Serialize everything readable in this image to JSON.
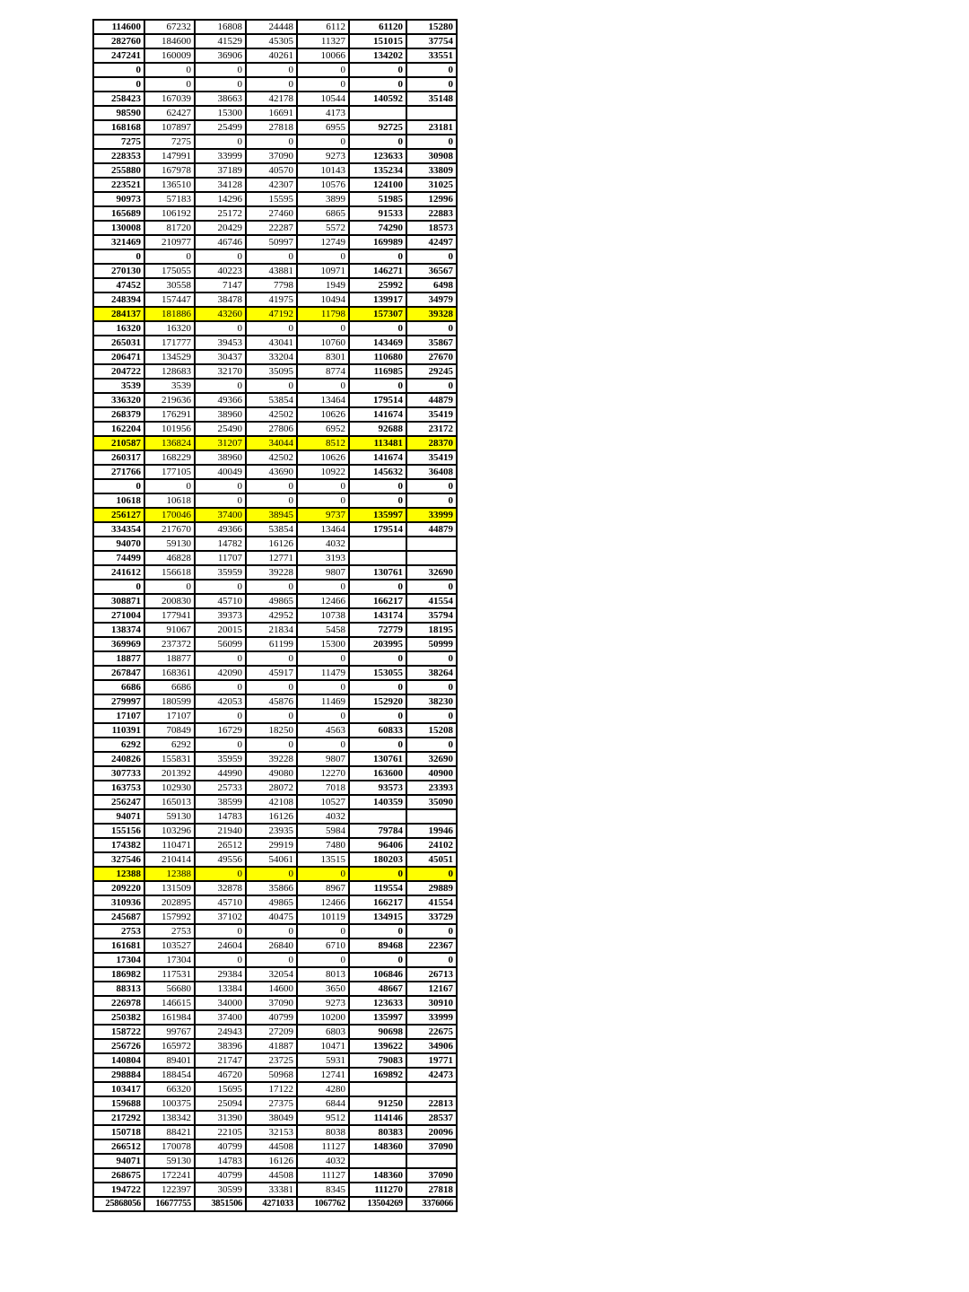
{
  "colors": {
    "highlight_yellow": "#ffff00",
    "border_black": "#000000",
    "text_black": "#000000",
    "background_white": "#ffffff"
  },
  "table": {
    "num_columns": 7,
    "rows": [
      {
        "highlight": false,
        "cells": [
          "114600",
          "67232",
          "16808",
          "24448",
          "6112",
          "61120",
          "15280"
        ]
      },
      {
        "highlight": false,
        "cells": [
          "282760",
          "184600",
          "41529",
          "45305",
          "11327",
          "151015",
          "37754"
        ]
      },
      {
        "highlight": false,
        "cells": [
          "247241",
          "160009",
          "36906",
          "40261",
          "10066",
          "134202",
          "33551"
        ]
      },
      {
        "highlight": false,
        "cells": [
          "0",
          "0",
          "0",
          "0",
          "0",
          "0",
          "0"
        ]
      },
      {
        "highlight": false,
        "cells": [
          "0",
          "0",
          "0",
          "0",
          "0",
          "0",
          "0"
        ]
      },
      {
        "highlight": false,
        "cells": [
          "258423",
          "167039",
          "38663",
          "42178",
          "10544",
          "140592",
          "35148"
        ]
      },
      {
        "highlight": false,
        "cells": [
          "98590",
          "62427",
          "15300",
          "16691",
          "4173",
          "",
          ""
        ]
      },
      {
        "highlight": false,
        "cells": [
          "168168",
          "107897",
          "25499",
          "27818",
          "6955",
          "92725",
          "23181"
        ]
      },
      {
        "highlight": false,
        "cells": [
          "7275",
          "7275",
          "0",
          "0",
          "0",
          "0",
          "0"
        ]
      },
      {
        "highlight": false,
        "cells": [
          "228353",
          "147991",
          "33999",
          "37090",
          "9273",
          "123633",
          "30908"
        ]
      },
      {
        "highlight": false,
        "cells": [
          "255880",
          "167978",
          "37189",
          "40570",
          "10143",
          "135234",
          "33809"
        ]
      },
      {
        "highlight": false,
        "cells": [
          "223521",
          "136510",
          "34128",
          "42307",
          "10576",
          "124100",
          "31025"
        ]
      },
      {
        "highlight": false,
        "cells": [
          "90973",
          "57183",
          "14296",
          "15595",
          "3899",
          "51985",
          "12996"
        ]
      },
      {
        "highlight": false,
        "cells": [
          "165689",
          "106192",
          "25172",
          "27460",
          "6865",
          "91533",
          "22883"
        ]
      },
      {
        "highlight": false,
        "cells": [
          "130008",
          "81720",
          "20429",
          "22287",
          "5572",
          "74290",
          "18573"
        ]
      },
      {
        "highlight": false,
        "cells": [
          "321469",
          "210977",
          "46746",
          "50997",
          "12749",
          "169989",
          "42497"
        ]
      },
      {
        "highlight": false,
        "cells": [
          "0",
          "0",
          "0",
          "0",
          "0",
          "0",
          "0"
        ]
      },
      {
        "highlight": false,
        "cells": [
          "270130",
          "175055",
          "40223",
          "43881",
          "10971",
          "146271",
          "36567"
        ]
      },
      {
        "highlight": false,
        "cells": [
          "47452",
          "30558",
          "7147",
          "7798",
          "1949",
          "25992",
          "6498"
        ]
      },
      {
        "highlight": false,
        "cells": [
          "248394",
          "157447",
          "38478",
          "41975",
          "10494",
          "139917",
          "34979"
        ]
      },
      {
        "highlight": true,
        "cells": [
          "284137",
          "181886",
          "43260",
          "47192",
          "11798",
          "157307",
          "39328"
        ]
      },
      {
        "highlight": false,
        "cells": [
          "16320",
          "16320",
          "0",
          "0",
          "0",
          "0",
          "0"
        ]
      },
      {
        "highlight": false,
        "cells": [
          "265031",
          "171777",
          "39453",
          "43041",
          "10760",
          "143469",
          "35867"
        ]
      },
      {
        "highlight": false,
        "cells": [
          "206471",
          "134529",
          "30437",
          "33204",
          "8301",
          "110680",
          "27670"
        ]
      },
      {
        "highlight": false,
        "cells": [
          "204722",
          "128683",
          "32170",
          "35095",
          "8774",
          "116985",
          "29245"
        ]
      },
      {
        "highlight": false,
        "cells": [
          "3539",
          "3539",
          "0",
          "0",
          "0",
          "0",
          "0"
        ]
      },
      {
        "highlight": false,
        "cells": [
          "336320",
          "219636",
          "49366",
          "53854",
          "13464",
          "179514",
          "44879"
        ]
      },
      {
        "highlight": false,
        "cells": [
          "268379",
          "176291",
          "38960",
          "42502",
          "10626",
          "141674",
          "35419"
        ]
      },
      {
        "highlight": false,
        "cells": [
          "162204",
          "101956",
          "25490",
          "27806",
          "6952",
          "92688",
          "23172"
        ]
      },
      {
        "highlight": true,
        "cells": [
          "210587",
          "136824",
          "31207",
          "34044",
          "8512",
          "113481",
          "28370"
        ]
      },
      {
        "highlight": false,
        "cells": [
          "260317",
          "168229",
          "38960",
          "42502",
          "10626",
          "141674",
          "35419"
        ]
      },
      {
        "highlight": false,
        "cells": [
          "271766",
          "177105",
          "40049",
          "43690",
          "10922",
          "145632",
          "36408"
        ]
      },
      {
        "highlight": false,
        "cells": [
          "0",
          "0",
          "0",
          "0",
          "0",
          "0",
          "0"
        ]
      },
      {
        "highlight": false,
        "cells": [
          "10618",
          "10618",
          "0",
          "0",
          "0",
          "0",
          "0"
        ]
      },
      {
        "highlight": true,
        "cells": [
          "256127",
          "170046",
          "37400",
          "38945",
          "9737",
          "135997",
          "33999"
        ]
      },
      {
        "highlight": false,
        "cells": [
          "334354",
          "217670",
          "49366",
          "53854",
          "13464",
          "179514",
          "44879"
        ]
      },
      {
        "highlight": false,
        "cells": [
          "94070",
          "59130",
          "14782",
          "16126",
          "4032",
          "",
          ""
        ]
      },
      {
        "highlight": false,
        "cells": [
          "74499",
          "46828",
          "11707",
          "12771",
          "3193",
          "",
          ""
        ]
      },
      {
        "highlight": false,
        "cells": [
          "241612",
          "156618",
          "35959",
          "39228",
          "9807",
          "130761",
          "32690"
        ]
      },
      {
        "highlight": false,
        "cells": [
          "0",
          "0",
          "0",
          "0",
          "0",
          "0",
          "0"
        ]
      },
      {
        "highlight": false,
        "cells": [
          "308871",
          "200830",
          "45710",
          "49865",
          "12466",
          "166217",
          "41554"
        ]
      },
      {
        "highlight": false,
        "cells": [
          "271004",
          "177941",
          "39373",
          "42952",
          "10738",
          "143174",
          "35794"
        ]
      },
      {
        "highlight": false,
        "cells": [
          "138374",
          "91067",
          "20015",
          "21834",
          "5458",
          "72779",
          "18195"
        ]
      },
      {
        "highlight": false,
        "cells": [
          "369969",
          "237372",
          "56099",
          "61199",
          "15300",
          "203995",
          "50999"
        ]
      },
      {
        "highlight": false,
        "cells": [
          "18877",
          "18877",
          "0",
          "0",
          "0",
          "0",
          "0"
        ]
      },
      {
        "highlight": false,
        "cells": [
          "267847",
          "168361",
          "42090",
          "45917",
          "11479",
          "153055",
          "38264"
        ]
      },
      {
        "highlight": false,
        "cells": [
          "6686",
          "6686",
          "0",
          "0",
          "0",
          "0",
          "0"
        ]
      },
      {
        "highlight": false,
        "cells": [
          "279997",
          "180599",
          "42053",
          "45876",
          "11469",
          "152920",
          "38230"
        ]
      },
      {
        "highlight": false,
        "cells": [
          "17107",
          "17107",
          "0",
          "0",
          "0",
          "0",
          "0"
        ]
      },
      {
        "highlight": false,
        "cells": [
          "110391",
          "70849",
          "16729",
          "18250",
          "4563",
          "60833",
          "15208"
        ]
      },
      {
        "highlight": false,
        "cells": [
          "6292",
          "6292",
          "0",
          "0",
          "0",
          "0",
          "0"
        ]
      },
      {
        "highlight": false,
        "cells": [
          "240826",
          "155831",
          "35959",
          "39228",
          "9807",
          "130761",
          "32690"
        ]
      },
      {
        "highlight": false,
        "cells": [
          "307733",
          "201392",
          "44990",
          "49080",
          "12270",
          "163600",
          "40900"
        ]
      },
      {
        "highlight": false,
        "cells": [
          "163753",
          "102930",
          "25733",
          "28072",
          "7018",
          "93573",
          "23393"
        ]
      },
      {
        "highlight": false,
        "cells": [
          "256247",
          "165013",
          "38599",
          "42108",
          "10527",
          "140359",
          "35090"
        ]
      },
      {
        "highlight": false,
        "cells": [
          "94071",
          "59130",
          "14783",
          "16126",
          "4032",
          "",
          ""
        ]
      },
      {
        "highlight": false,
        "cells": [
          "155156",
          "103296",
          "21940",
          "23935",
          "5984",
          "79784",
          "19946"
        ]
      },
      {
        "highlight": false,
        "cells": [
          "174382",
          "110471",
          "26512",
          "29919",
          "7480",
          "96406",
          "24102"
        ]
      },
      {
        "highlight": false,
        "cells": [
          "327546",
          "210414",
          "49556",
          "54061",
          "13515",
          "180203",
          "45051"
        ]
      },
      {
        "highlight": true,
        "cells": [
          "12388",
          "12388",
          "0",
          "0",
          "0",
          "0",
          "0"
        ]
      },
      {
        "highlight": false,
        "cells": [
          "209220",
          "131509",
          "32878",
          "35866",
          "8967",
          "119554",
          "29889"
        ]
      },
      {
        "highlight": false,
        "cells": [
          "310936",
          "202895",
          "45710",
          "49865",
          "12466",
          "166217",
          "41554"
        ]
      },
      {
        "highlight": false,
        "cells": [
          "245687",
          "157992",
          "37102",
          "40475",
          "10119",
          "134915",
          "33729"
        ]
      },
      {
        "highlight": false,
        "cells": [
          "2753",
          "2753",
          "0",
          "0",
          "0",
          "0",
          "0"
        ]
      },
      {
        "highlight": false,
        "cells": [
          "161681",
          "103527",
          "24604",
          "26840",
          "6710",
          "89468",
          "22367"
        ]
      },
      {
        "highlight": false,
        "cells": [
          "17304",
          "17304",
          "0",
          "0",
          "0",
          "0",
          "0"
        ]
      },
      {
        "highlight": false,
        "cells": [
          "186982",
          "117531",
          "29384",
          "32054",
          "8013",
          "106846",
          "26713"
        ]
      },
      {
        "highlight": false,
        "cells": [
          "88313",
          "56680",
          "13384",
          "14600",
          "3650",
          "48667",
          "12167"
        ]
      },
      {
        "highlight": false,
        "cells": [
          "226978",
          "146615",
          "34000",
          "37090",
          "9273",
          "123633",
          "30910"
        ]
      },
      {
        "highlight": false,
        "cells": [
          "250382",
          "161984",
          "37400",
          "40799",
          "10200",
          "135997",
          "33999"
        ]
      },
      {
        "highlight": false,
        "cells": [
          "158722",
          "99767",
          "24943",
          "27209",
          "6803",
          "90698",
          "22675"
        ]
      },
      {
        "highlight": false,
        "cells": [
          "256726",
          "165972",
          "38396",
          "41887",
          "10471",
          "139622",
          "34906"
        ]
      },
      {
        "highlight": false,
        "cells": [
          "140804",
          "89401",
          "21747",
          "23725",
          "5931",
          "79083",
          "19771"
        ]
      },
      {
        "highlight": false,
        "cells": [
          "298884",
          "188454",
          "46720",
          "50968",
          "12741",
          "169892",
          "42473"
        ]
      },
      {
        "highlight": false,
        "cells": [
          "103417",
          "66320",
          "15695",
          "17122",
          "4280",
          "",
          ""
        ]
      },
      {
        "highlight": false,
        "cells": [
          "159688",
          "100375",
          "25094",
          "27375",
          "6844",
          "91250",
          "22813"
        ]
      },
      {
        "highlight": false,
        "cells": [
          "217292",
          "138342",
          "31390",
          "38049",
          "9512",
          "114146",
          "28537"
        ]
      },
      {
        "highlight": false,
        "cells": [
          "150718",
          "88421",
          "22105",
          "32153",
          "8038",
          "80383",
          "20096"
        ]
      },
      {
        "highlight": false,
        "cells": [
          "266512",
          "170078",
          "40799",
          "44508",
          "11127",
          "148360",
          "37090"
        ]
      },
      {
        "highlight": false,
        "cells": [
          "94071",
          "59130",
          "14783",
          "16126",
          "4032",
          "",
          ""
        ]
      },
      {
        "highlight": false,
        "cells": [
          "268675",
          "172241",
          "40799",
          "44508",
          "11127",
          "148360",
          "37090"
        ]
      },
      {
        "highlight": false,
        "cells": [
          "194722",
          "122397",
          "30599",
          "33381",
          "8345",
          "111270",
          "27818"
        ]
      }
    ],
    "total_row": {
      "cells": [
        "25868056",
        "16677755",
        "3851506",
        "4271033",
        "1067762",
        "13504269",
        "3376066"
      ]
    }
  }
}
